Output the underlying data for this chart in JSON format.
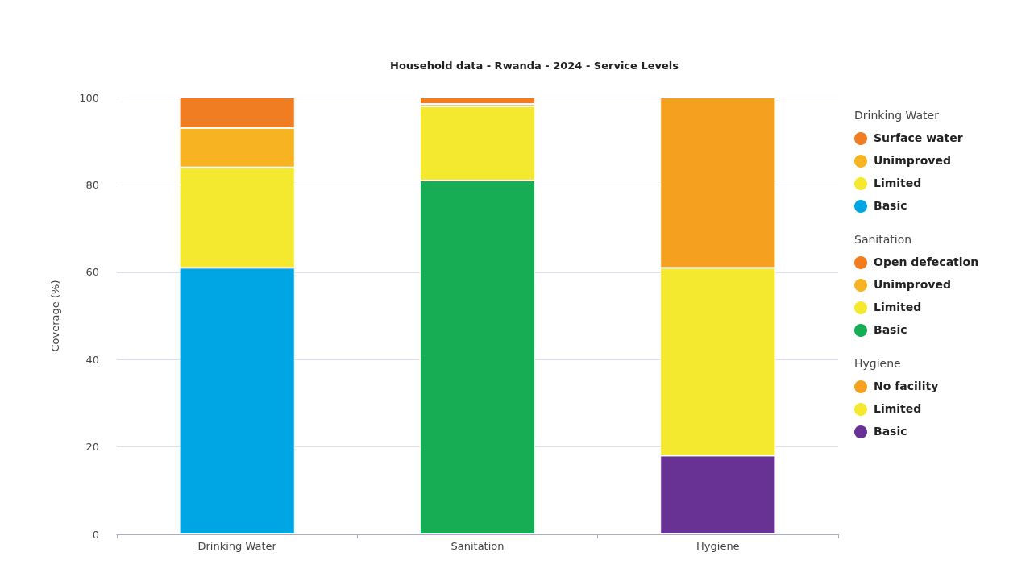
{
  "chart_data": {
    "type": "bar",
    "title": "Household data - Rwanda - 2024 - Service Levels",
    "ylabel": "Coverage (%)",
    "categories": [
      "Drinking Water",
      "Sanitation",
      "Hygiene"
    ],
    "stacked": true,
    "series": [
      {
        "name": "Basic",
        "color": "#00a6e3",
        "values": [
          61,
          null,
          null
        ]
      },
      {
        "name": "Limited",
        "color": "#f4e92e",
        "values": [
          23,
          null,
          null
        ]
      },
      {
        "name": "Unimproved",
        "color": "#f8b323",
        "values": [
          9,
          null,
          null
        ]
      },
      {
        "name": "Surface water",
        "color": "#f07d22",
        "values": [
          7,
          null,
          null
        ]
      },
      {
        "name": "Basic",
        "color": "#16ad55",
        "values": [
          null,
          81,
          null
        ]
      },
      {
        "name": "Limited",
        "color": "#f4e92e",
        "values": [
          null,
          17,
          null
        ]
      },
      {
        "name": "Unimproved",
        "color": "#f8b323",
        "values": [
          null,
          0.5,
          null
        ]
      },
      {
        "name": "Open defecation",
        "color": "#f07d22",
        "values": [
          null,
          1.5,
          null
        ]
      },
      {
        "name": "Basic",
        "color": "#673293",
        "values": [
          null,
          null,
          18
        ]
      },
      {
        "name": "Limited",
        "color": "#f4e92e",
        "values": [
          null,
          null,
          43
        ]
      },
      {
        "name": "No facility",
        "color": "#f6a01f",
        "values": [
          null,
          null,
          39
        ]
      }
    ],
    "ylim": [
      0,
      100
    ],
    "yticks": [
      0,
      20,
      40,
      60,
      80,
      100
    ],
    "grid": "y",
    "legend": "right"
  }
}
